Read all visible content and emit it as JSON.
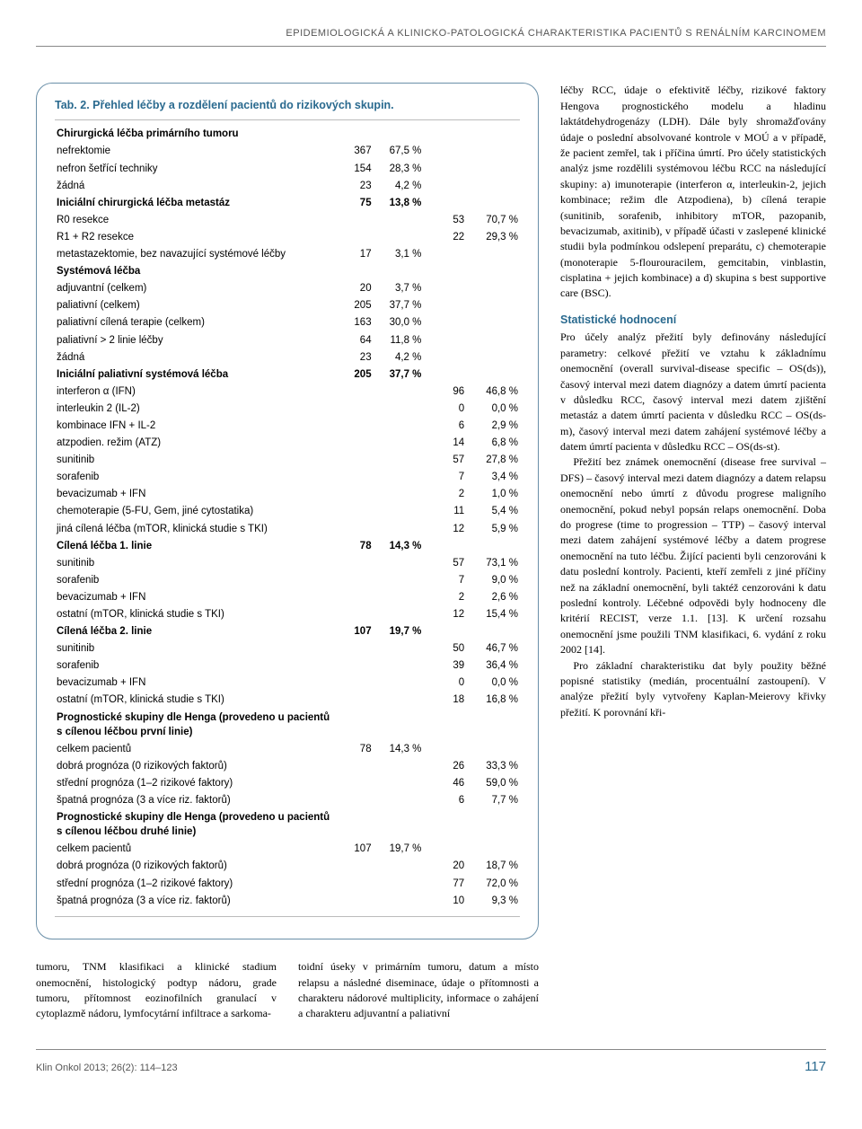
{
  "header": {
    "running": "EPIDEMIOLOGICKÁ A KLINICKO-PATOLOGICKÁ CHARAKTERISTIKA PACIENTŮ S RENÁLNÍM KARCINOMEM"
  },
  "table": {
    "title": "Tab. 2. Přehled léčby a rozdělení pacientů do rizikových skupin.",
    "rows": [
      {
        "label": "Chirurgická léčba primárního tumoru",
        "bold": true
      },
      {
        "label": "nefrektomie",
        "n1": "367",
        "p1": "67,5 %"
      },
      {
        "label": "nefron šetřící techniky",
        "n1": "154",
        "p1": "28,3 %"
      },
      {
        "label": "žádná",
        "n1": "23",
        "p1": "4,2 %"
      },
      {
        "label": "Iniciální chirurgická léčba metastáz",
        "bold": true,
        "n1": "75",
        "p1": "13,8 %"
      },
      {
        "label": "R0 resekce",
        "n2": "53",
        "p2": "70,7 %"
      },
      {
        "label": "R1 + R2 resekce",
        "n2": "22",
        "p2": "29,3 %"
      },
      {
        "label": "metastazektomie, bez navazující systémové léčby",
        "n1": "17",
        "p1": "3,1 %"
      },
      {
        "label": "Systémová léčba",
        "bold": true
      },
      {
        "label": "adjuvantní (celkem)",
        "n1": "20",
        "p1": "3,7 %"
      },
      {
        "label": "paliativní (celkem)",
        "n1": "205",
        "p1": "37,7 %"
      },
      {
        "label": "paliativní cílená terapie (celkem)",
        "n1": "163",
        "p1": "30,0 %"
      },
      {
        "label": "paliativní > 2 linie léčby",
        "n1": "64",
        "p1": "11,8 %"
      },
      {
        "label": "žádná",
        "n1": "23",
        "p1": "4,2 %"
      },
      {
        "label": "Iniciální paliativní systémová léčba",
        "bold": true,
        "n1": "205",
        "p1": "37,7 %"
      },
      {
        "label": "interferon α (IFN)",
        "n2": "96",
        "p2": "46,8 %"
      },
      {
        "label": "interleukin 2 (IL-2)",
        "n2": "0",
        "p2": "0,0 %"
      },
      {
        "label": "kombinace IFN + IL-2",
        "n2": "6",
        "p2": "2,9 %"
      },
      {
        "label": "atzpodien. režim (ATZ)",
        "n2": "14",
        "p2": "6,8 %"
      },
      {
        "label": "sunitinib",
        "n2": "57",
        "p2": "27,8 %"
      },
      {
        "label": "sorafenib",
        "n2": "7",
        "p2": "3,4 %"
      },
      {
        "label": "bevacizumab + IFN",
        "n2": "2",
        "p2": "1,0 %"
      },
      {
        "label": "chemoterapie (5-FU, Gem, jiné cytostatika)",
        "n2": "11",
        "p2": "5,4 %"
      },
      {
        "label": "jiná cílená léčba (mTOR, klinická studie s TKI)",
        "n2": "12",
        "p2": "5,9 %"
      },
      {
        "label": "Cílená léčba 1. linie",
        "bold": true,
        "n1": "78",
        "p1": "14,3 %"
      },
      {
        "label": "sunitinib",
        "n2": "57",
        "p2": "73,1 %"
      },
      {
        "label": "sorafenib",
        "n2": "7",
        "p2": "9,0 %"
      },
      {
        "label": "bevacizumab + IFN",
        "n2": "2",
        "p2": "2,6 %"
      },
      {
        "label": "ostatní (mTOR, klinická studie s TKI)",
        "n2": "12",
        "p2": "15,4 %"
      },
      {
        "label": "Cílená léčba 2. linie",
        "bold": true,
        "n1": "107",
        "p1": "19,7 %"
      },
      {
        "label": "sunitinib",
        "n2": "50",
        "p2": "46,7 %"
      },
      {
        "label": "sorafenib",
        "n2": "39",
        "p2": "36,4 %"
      },
      {
        "label": "bevacizumab + IFN",
        "n2": "0",
        "p2": "0,0 %"
      },
      {
        "label": "ostatní (mTOR, klinická studie s TKI)",
        "n2": "18",
        "p2": "16,8 %"
      },
      {
        "label": "Prognostické skupiny dle Henga (provedeno u pacientů s cílenou léčbou první linie)",
        "bold": true
      },
      {
        "label": "celkem pacientů",
        "n1": "78",
        "p1": "14,3 %"
      },
      {
        "label": "dobrá prognóza (0 rizikových faktorů)",
        "n2": "26",
        "p2": "33,3 %"
      },
      {
        "label": "střední prognóza (1–2 rizikové faktory)",
        "n2": "46",
        "p2": "59,0 %"
      },
      {
        "label": "špatná prognóza (3 a více riz. faktorů)",
        "n2": "6",
        "p2": "7,7 %"
      },
      {
        "label": "Prognostické skupiny dle Henga (provedeno u pacientů s cílenou léčbou druhé linie)",
        "bold": true
      },
      {
        "label": "celkem pacientů",
        "n1": "107",
        "p1": "19,7 %"
      },
      {
        "label": "dobrá prognóza (0 rizikových faktorů)",
        "n2": "20",
        "p2": "18,7 %"
      },
      {
        "label": "střední prognóza (1–2 rizikové faktory)",
        "n2": "77",
        "p2": "72,0 %"
      },
      {
        "label": "špatná prognóza (3 a více riz. faktorů)",
        "n2": "10",
        "p2": "9,3 %"
      }
    ]
  },
  "left_para": {
    "c1": "tumoru, TNM klasifikaci a klinické stadium onemocnění, histologický podtyp nádoru, grade tumoru, přítomnost eozinofilních granulací v cytoplazmě nádoru, lymfocytární infiltrace a sarkoma-",
    "c2": "toidní úseky v primárním tumoru, datum a místo relapsu a následné diseminace, údaje o přítomnosti a charakteru nádorové multiplicity, informace o zahájení a charakteru adjuvantní a paliativní"
  },
  "right": {
    "p1": "léčby RCC, údaje o efektivitě léčby, rizikové faktory Hengova prognostického modelu a hladinu laktátdehydrogenázy (LDH). Dále byly shromažďovány údaje o poslední absolvované kontrole v MOÚ a v případě, že pacient zemřel, tak i příčina úmrtí. Pro účely statistických analýz jsme rozdělili systémovou léčbu RCC na následující skupiny: a) imunoterapie (interferon α, interleukin-2, jejich kombinace; režim dle Atzpodiena), b) cílená terapie (sunitinib, sorafenib, inhibitory mTOR, pazopanib, bevacizumab, axitinib), v případě účasti v zaslepené klinické studii byla podmínkou odslepení preparátu, c) chemoterapie (monoterapie 5-flourouracilem, gemcitabin, vinblastin, cisplatina + jejich kombinace) a d) skupina s best supportive care (BSC).",
    "h1": "Statistické hodnocení",
    "p2": "Pro účely analýz přežití byly definovány následující parametry: celkové přežití ve vztahu k základnímu onemocnění (overall survival-disease specific – OS(ds)), časový interval mezi datem diagnózy a datem úmrtí pacienta v důsledku RCC, časový interval mezi datem zjištění metastáz a datem úmrtí pacienta v důsledku RCC – OS(ds-m), časový interval mezi datem zahájení systémové léčby a datem úmrtí pacienta v důsledku RCC – OS(ds-st).",
    "p3": "Přežití bez známek onemocnění (disease free survival – DFS) – časový interval mezi datem diagnózy a datem relapsu onemocnění nebo úmrtí z důvodu progrese maligního onemocnění, pokud nebyl popsán relaps onemocnění. Doba do progrese (time to progression – TTP) – časový interval mezi datem zahájení systémové léčby a datem progrese onemocnění na tuto léčbu. Žijící pacienti byli cenzorováni k datu poslední kontroly. Pacienti, kteří zemřeli z jiné příčiny než na základní onemocnění, byli taktéž cenzorováni k datu poslední kontroly. Léčebné odpovědi byly hodnoceny dle kritérií RECIST, verze 1.1. [13]. K určení rozsahu onemocnění jsme použili TNM klasifikaci, 6. vydání z roku 2002 [14].",
    "p4": "Pro základní charakteristiku dat byly použity běžné popisné statistiky (medián, procentuální zastoupení). V analýze přežití byly vytvořeny Kaplan-Meierovy křivky přežití. K porovnání kři-"
  },
  "footer": {
    "citation": "Klin Onkol 2013; 26(2): 114–123",
    "page": "117"
  },
  "colors": {
    "accent": "#2a6a8f",
    "border": "#6a8fa8",
    "rule": "#888888"
  }
}
